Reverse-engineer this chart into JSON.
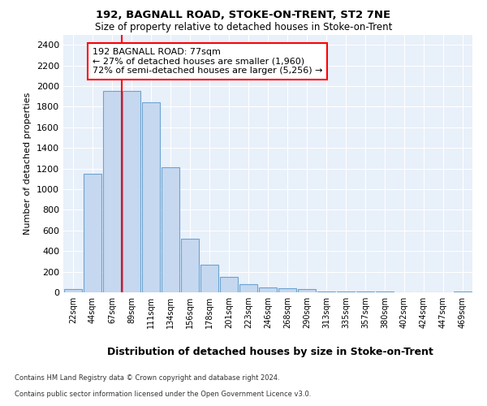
{
  "title1": "192, BAGNALL ROAD, STOKE-ON-TRENT, ST2 7NE",
  "title2": "Size of property relative to detached houses in Stoke-on-Trent",
  "xlabel": "Distribution of detached houses by size in Stoke-on-Trent",
  "ylabel": "Number of detached properties",
  "categories": [
    "22sqm",
    "44sqm",
    "67sqm",
    "89sqm",
    "111sqm",
    "134sqm",
    "156sqm",
    "178sqm",
    "201sqm",
    "223sqm",
    "246sqm",
    "268sqm",
    "290sqm",
    "313sqm",
    "335sqm",
    "357sqm",
    "380sqm",
    "402sqm",
    "424sqm",
    "447sqm",
    "469sqm"
  ],
  "values": [
    30,
    1150,
    1950,
    1950,
    1840,
    1210,
    520,
    270,
    150,
    75,
    50,
    40,
    35,
    8,
    5,
    5,
    5,
    3,
    2,
    2,
    5
  ],
  "bar_color": "#C5D8F0",
  "bar_edge_color": "#6BA3D0",
  "red_line_index": 2,
  "annotation_line1": "192 BAGNALL ROAD: 77sqm",
  "annotation_line2": "← 27% of detached houses are smaller (1,960)",
  "annotation_line3": "72% of semi-detached houses are larger (5,256) →",
  "ylim": [
    0,
    2500
  ],
  "yticks": [
    0,
    200,
    400,
    600,
    800,
    1000,
    1200,
    1400,
    1600,
    1800,
    2000,
    2200,
    2400
  ],
  "footer1": "Contains HM Land Registry data © Crown copyright and database right 2024.",
  "footer2": "Contains public sector information licensed under the Open Government Licence v3.0.",
  "grid_color": "#FFFFFF",
  "plot_bg_color": "#E8F0FA"
}
